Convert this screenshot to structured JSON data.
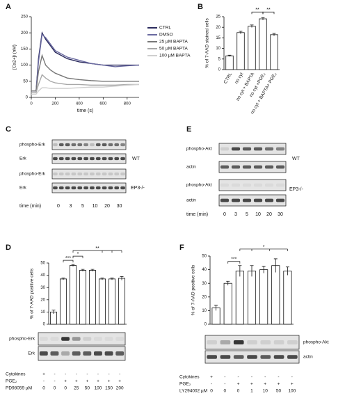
{
  "panel_letters": [
    "A",
    "B",
    "C",
    "D",
    "E",
    "F"
  ],
  "chart_data": [
    {
      "type": "line",
      "x_label": "time (s)",
      "y_label": "[Ca2+]i (nM)",
      "x": [
        0,
        40,
        60,
        90,
        120,
        160,
        200,
        300,
        400,
        500,
        600,
        700,
        800,
        900
      ],
      "xlim": [
        0,
        900
      ],
      "xticks": [
        0,
        200,
        400,
        600,
        800
      ],
      "ylim": [
        0,
        250
      ],
      "yticks": [
        0,
        50,
        100,
        150,
        200,
        250
      ],
      "series": [
        {
          "name": "CTRL",
          "color": "#2b2b5e",
          "values": [
            20,
            20,
            120,
            200,
            180,
            160,
            140,
            120,
            110,
            105,
            100,
            100,
            100,
            100
          ]
        },
        {
          "name": "DMSO",
          "color": "#6a6aa0",
          "values": [
            20,
            20,
            110,
            195,
            185,
            165,
            145,
            125,
            115,
            105,
            100,
            95,
            98,
            100
          ]
        },
        {
          "name": "25 µM BAPTA",
          "color": "#777777",
          "values": [
            20,
            20,
            80,
            130,
            100,
            85,
            75,
            60,
            55,
            52,
            50,
            50,
            50,
            50
          ]
        },
        {
          "name": "50 µM BAPTA",
          "color": "#a8a8a8",
          "values": [
            15,
            15,
            40,
            70,
            60,
            50,
            45,
            40,
            40,
            38,
            38,
            38,
            40,
            40
          ]
        },
        {
          "name": "100 µM BAPTA",
          "color": "#cfcfcf",
          "values": [
            10,
            10,
            20,
            30,
            30,
            28,
            28,
            28,
            30,
            32,
            32,
            35,
            38,
            40
          ]
        }
      ]
    },
    {
      "type": "bar",
      "y_label": "% of 7-AAD stained cells",
      "categories": [
        "CTRL",
        "no cyt",
        "no cyt + BAPTA",
        "no cyt +PGE₂",
        "no cyt + BAPTA+ PGE₂"
      ],
      "values": [
        6.5,
        17.5,
        20.5,
        24,
        16.5
      ],
      "errors": [
        0.3,
        0.6,
        0.6,
        0.6,
        0.6
      ],
      "ylim": [
        0,
        25
      ],
      "yticks": [
        0,
        5,
        10,
        15,
        20,
        25
      ],
      "color": "#ffffff",
      "annotations": [
        "**",
        "**"
      ]
    },
    {
      "type": "bar",
      "y_label": "% of 7-AAD positive cells",
      "values": [
        10,
        37,
        48,
        44,
        44,
        37,
        37,
        37.5
      ],
      "errors": [
        1.5,
        0.8,
        0.8,
        0.8,
        0.8,
        0.8,
        0.8,
        1.5
      ],
      "ylim": [
        0,
        50
      ],
      "yticks": [
        0,
        10,
        20,
        30,
        40,
        50
      ],
      "color": "#ffffff",
      "annotations": [
        "***",
        "*",
        "**"
      ]
    },
    {
      "type": "bar",
      "y_label": "% of 7-AAD positive cells",
      "values": [
        12,
        30,
        39,
        39,
        40,
        43,
        39
      ],
      "errors": [
        2,
        1.5,
        4,
        4,
        2.5,
        5,
        3
      ],
      "ylim": [
        0,
        50
      ],
      "yticks": [
        0,
        10,
        20,
        30,
        40,
        50
      ],
      "color": "#ffffff",
      "annotations": [
        "***",
        "*"
      ]
    }
  ],
  "blots": {
    "C": {
      "rows": [
        "phospho-Erk",
        "Erk",
        "phospho-Erk",
        "Erk"
      ],
      "groups": [
        "WT",
        "EP3-/-"
      ],
      "time_label": "time (min)",
      "times": [
        0,
        3,
        5,
        10,
        20,
        30
      ]
    },
    "E": {
      "rows": [
        "phospho-Akt",
        "actin",
        "phospho-Akt",
        "actin"
      ],
      "groups": [
        "WT",
        "EP3-/-"
      ],
      "time_label": "time (min)",
      "times": [
        0,
        3,
        5,
        10,
        20,
        30
      ]
    },
    "D": {
      "rows": [
        "phospho-Erk",
        "Erk"
      ]
    },
    "F": {
      "rows": [
        "phospho-Akt",
        "actin"
      ]
    }
  },
  "conditions": {
    "D": [
      {
        "label": "Cytokines",
        "cells": [
          "+",
          "-",
          "-",
          "-",
          "-",
          "-",
          "-",
          "-"
        ]
      },
      {
        "label": "PGE₂",
        "cells": [
          "-",
          "-",
          "+",
          "+",
          "+",
          "+",
          "+",
          "+"
        ]
      },
      {
        "label": "PD98059 µM",
        "cells": [
          0,
          0,
          0,
          25,
          50,
          100,
          150,
          200
        ]
      }
    ],
    "F": [
      {
        "label": "Cytokines",
        "cells": [
          "+",
          "-",
          "-",
          "-",
          "-",
          "-",
          "-"
        ]
      },
      {
        "label": "PGE₂",
        "cells": [
          "-",
          "-",
          "+",
          "+",
          "+",
          "+",
          "+"
        ]
      },
      {
        "label": "LY294002 µM",
        "cells": [
          0,
          0,
          0,
          1,
          10,
          50,
          100
        ]
      }
    ]
  }
}
